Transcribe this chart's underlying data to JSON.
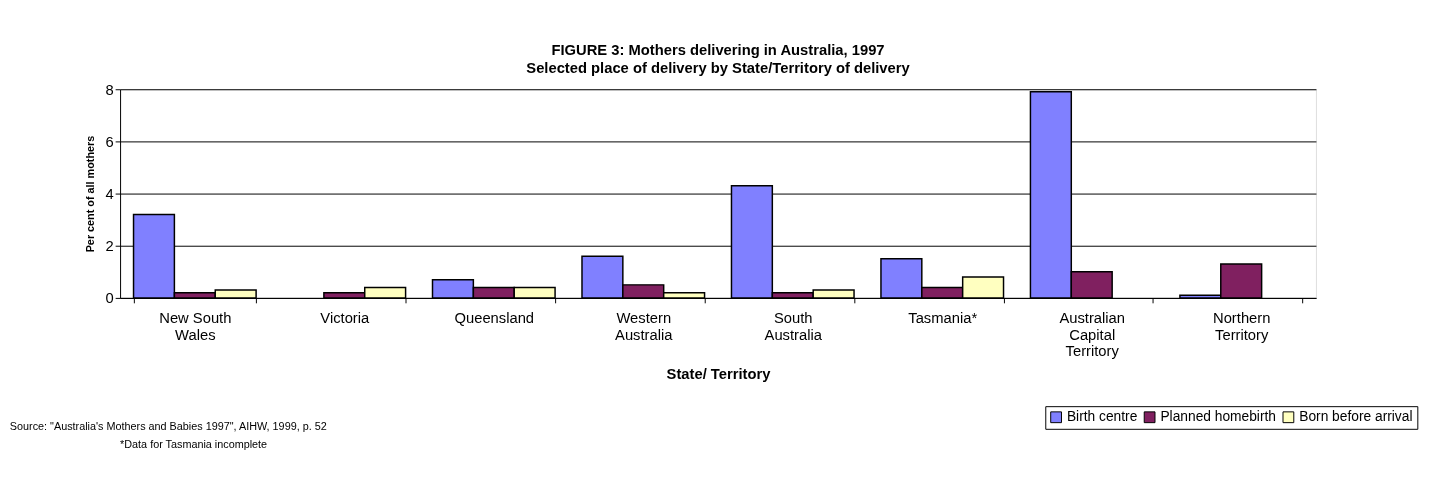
{
  "chart_data": {
    "type": "bar",
    "title": "FIGURE 3:  Mothers delivering in Australia, 1997",
    "subtitle": "Selected place of delivery by State/Territory of delivery",
    "xlabel": "State/ Territory",
    "ylabel": "Per cent of all mothers",
    "categories": [
      "New South Wales",
      "Victoria",
      "Queensland",
      "Western Australia",
      "South Australia",
      "Tasmania*",
      "Australian Capital Territory",
      "Northern Territory"
    ],
    "series": [
      {
        "name": "Birth centre",
        "color": "#8080ff",
        "values": [
          3.2,
          null,
          0.7,
          1.6,
          4.3,
          1.5,
          7.9,
          0.1
        ]
      },
      {
        "name": "Planned homebirth",
        "color": "#802060",
        "values": [
          0.2,
          0.2,
          0.4,
          0.5,
          0.2,
          0.4,
          1.0,
          1.3
        ]
      },
      {
        "name": "Born before arrival",
        "color": "#ffffc0",
        "values": [
          0.3,
          0.4,
          0.4,
          0.2,
          0.3,
          0.8,
          null,
          null
        ]
      }
    ],
    "ylim": [
      0,
      8
    ],
    "yticks": [
      0,
      2,
      4,
      6,
      8
    ],
    "grid": "y",
    "legend": "bottom right",
    "annotations": [
      "Source: \"Australia's Mothers and Babies 1997\", AIHW, 1999, p. 52",
      "*Data for Tasmania incomplete"
    ]
  }
}
